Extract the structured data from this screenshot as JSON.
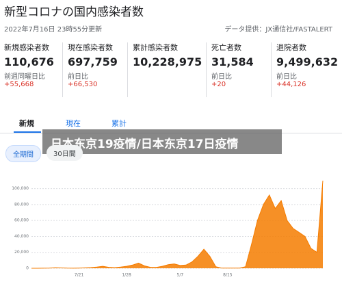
{
  "header": {
    "title": "新型コロナの国内感染者数",
    "updated": "2022年7月16日 23時55分更新",
    "source": "データ提供：JX通信社/FASTALERT"
  },
  "stats": [
    {
      "label": "新規感染者数",
      "value": "110,676",
      "sub_label": "前週同曜日比",
      "change": "+55,668"
    },
    {
      "label": "現在感染者数",
      "value": "697,759",
      "sub_label": "前日比",
      "change": "+66,530"
    },
    {
      "label": "累計感染者数",
      "value": "10,228,975"
    },
    {
      "label": "死亡者数",
      "value": "31,584",
      "sub_label": "前日比",
      "change": "+20"
    },
    {
      "label": "退院者数",
      "value": "9,499,632",
      "sub_label": "前日比",
      "change": "+44,126"
    }
  ],
  "tabs": [
    "新規",
    "現在",
    "累計"
  ],
  "filters": [
    "全期間",
    "30日間"
  ],
  "banner": "日本东京19疫情/日本东京17日疫情",
  "chart_data": {
    "type": "area",
    "color": "#f57c00",
    "categories": [
      null,
      null,
      null,
      null,
      null,
      null,
      null,
      null,
      "7/21",
      null,
      null,
      null,
      null,
      null,
      null,
      null,
      "1/28",
      null,
      null,
      null,
      null,
      null,
      null,
      null,
      null,
      "5/7",
      null,
      null,
      null,
      null,
      null,
      null,
      null,
      "8/15",
      null,
      null,
      null,
      null,
      null,
      null,
      null,
      null,
      null,
      null,
      null,
      null,
      null,
      null,
      null,
      null
    ],
    "values": [
      0,
      0,
      100,
      300,
      600,
      400,
      200,
      100,
      300,
      500,
      900,
      1500,
      2500,
      1200,
      800,
      1500,
      2500,
      4000,
      6500,
      3000,
      1200,
      1000,
      2500,
      4500,
      5500,
      3500,
      4000,
      8000,
      15000,
      24000,
      15000,
      2000,
      200,
      150,
      200,
      300,
      2000,
      30000,
      60000,
      80000,
      92000,
      75000,
      85000,
      60000,
      50000,
      45000,
      40000,
      25000,
      20000,
      110000
    ],
    "ylim": [
      0,
      110000
    ],
    "yticks": [
      0,
      {
        "value": 20000,
        "label": "20,000"
      },
      {
        "value": 40000,
        "label": "40,000"
      },
      {
        "value": 60000,
        "label": "60,000"
      },
      {
        "value": 80000,
        "label": "80,000"
      },
      {
        "value": 100000,
        "label": "100,000"
      }
    ],
    "grid": true
  }
}
